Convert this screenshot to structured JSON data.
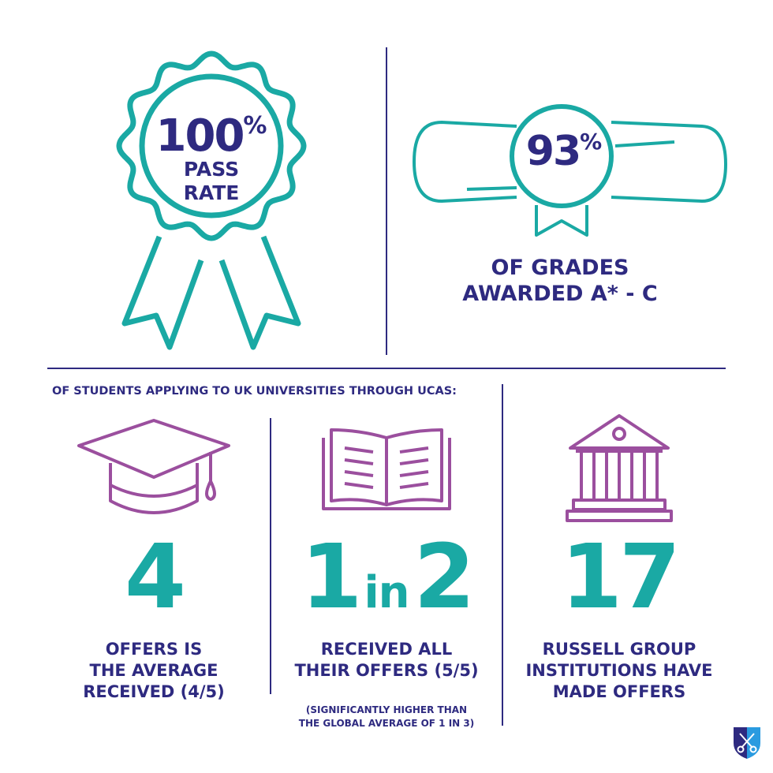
{
  "colors": {
    "navy": "#2e2a80",
    "teal": "#1aa9a4",
    "purple": "#9b4f9e"
  },
  "pass_rate": {
    "value": "100",
    "unit": "%",
    "line1": "PASS",
    "line2": "RATE",
    "icon": "rosette-icon"
  },
  "grades": {
    "value": "93",
    "unit": "%",
    "line1": "OF GRADES",
    "line2": "AWARDED A* - C",
    "icon": "diploma-scroll-icon"
  },
  "ucas_heading": "OF STUDENTS APPLYING TO UK UNIVERSITIES THROUGH UCAS:",
  "stats": [
    {
      "icon": "graduation-cap-icon",
      "number": "4",
      "caption": [
        "OFFERS IS",
        "THE AVERAGE",
        "RECEIVED (4/5)"
      ]
    },
    {
      "icon": "open-book-icon",
      "number_a": "1",
      "number_mid": "in",
      "number_b": "2",
      "caption": [
        "RECEIVED ALL",
        "THEIR OFFERS (5/5)"
      ],
      "note": [
        "(SIGNIFICANTLY HIGHER THAN",
        "THE GLOBAL AVERAGE OF 1 IN 3)"
      ]
    },
    {
      "icon": "university-building-icon",
      "number": "17",
      "caption": [
        "RUSSELL GROUP",
        "INSTITUTIONS HAVE",
        "MADE OFFERS"
      ]
    }
  ],
  "logo": {
    "icon": "crossed-keys-shield-logo"
  }
}
